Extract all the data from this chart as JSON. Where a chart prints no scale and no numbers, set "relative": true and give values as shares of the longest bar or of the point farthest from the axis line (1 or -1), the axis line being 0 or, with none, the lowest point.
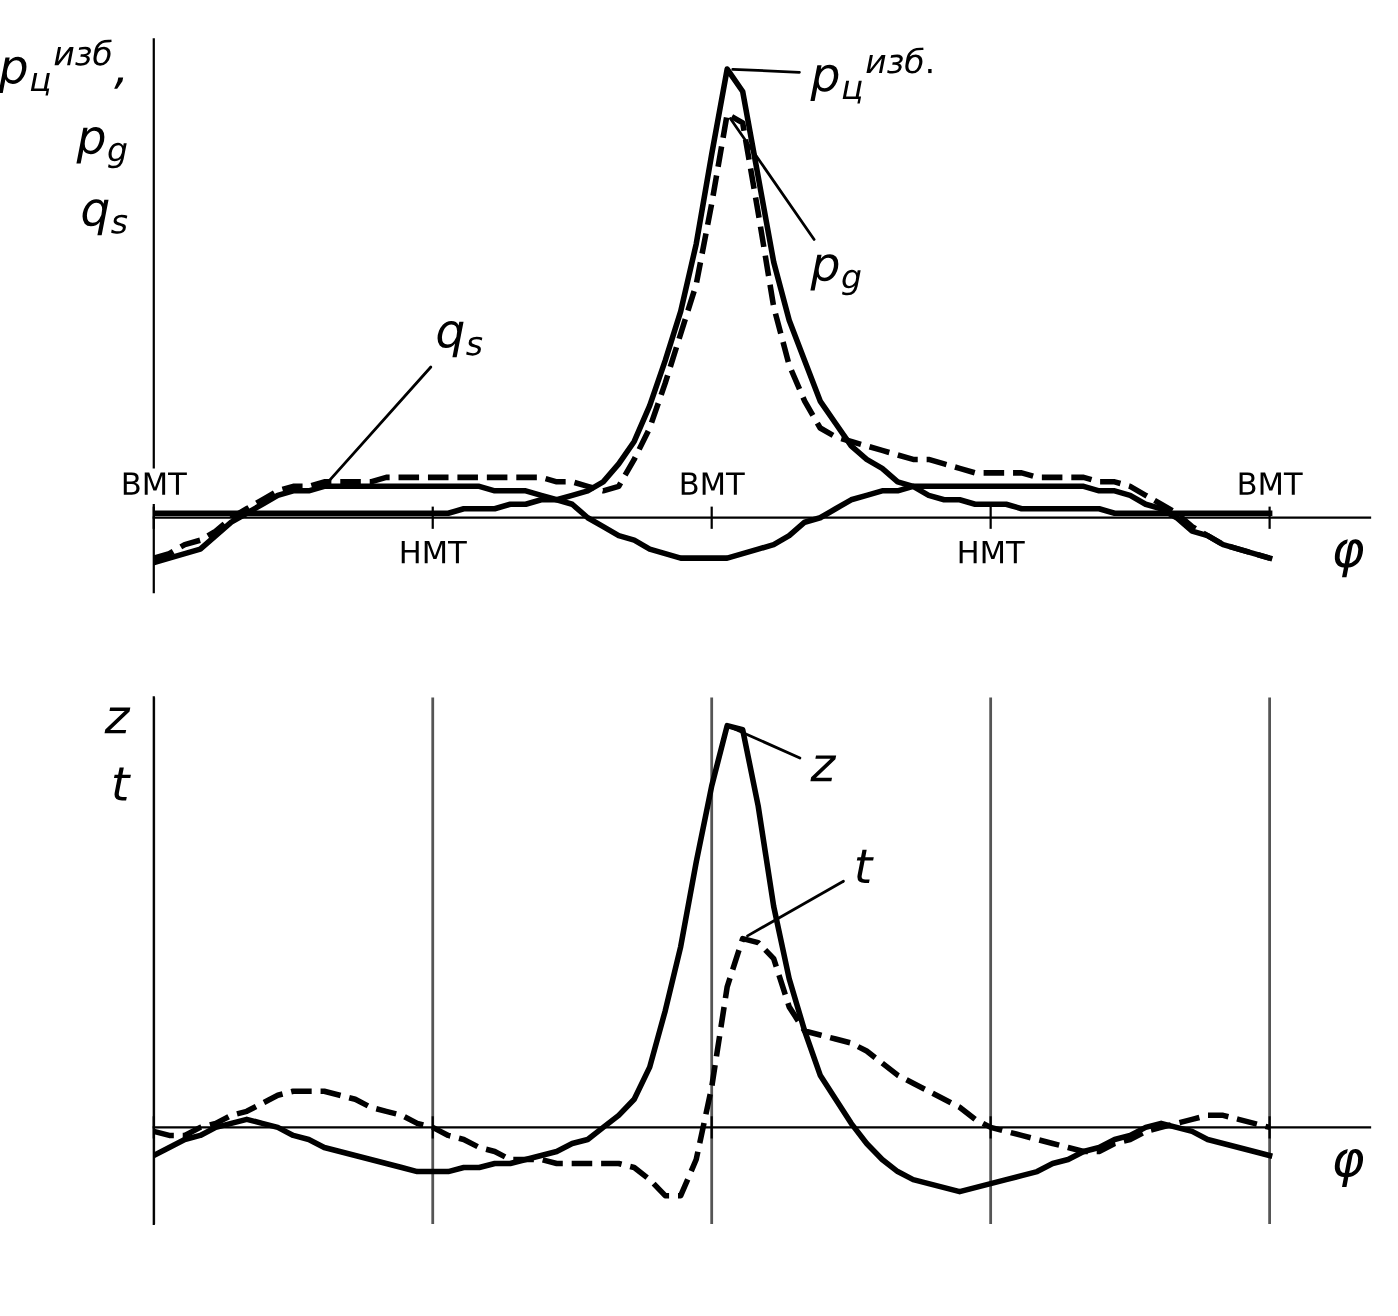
{
  "chart_data": [
    {
      "type": "line",
      "relative": true,
      "ylabel": "p$_{ц}$$^{изб}$,\np$_{g}$\nq$_{s}$",
      "xlabel": "φ",
      "tick_labels": "x",
      "categories": [
        "ВМТ",
        null,
        null,
        null,
        null,
        null,
        null,
        null,
        null,
        null,
        null,
        null,
        null,
        null,
        null,
        null,
        null,
        null,
        "НМТ",
        null,
        null,
        null,
        null,
        null,
        null,
        null,
        null,
        null,
        null,
        null,
        null,
        null,
        null,
        null,
        null,
        null,
        "ВМТ",
        null,
        null,
        null,
        null,
        null,
        null,
        null,
        null,
        null,
        null,
        null,
        null,
        null,
        null,
        null,
        null,
        null,
        "НМТ",
        null,
        null,
        null,
        null,
        null,
        null,
        null,
        null,
        null,
        null,
        null,
        null,
        null,
        null,
        null,
        null,
        null,
        "ВМТ"
      ],
      "series": [
        {
          "name": "p$_{ц}$$^{изб.}$",
          "color": "#000000",
          "line_style": "solid",
          "values": [
            0.01,
            0.01,
            0.01,
            0.01,
            0.01,
            0.01,
            0.01,
            0.01,
            0.01,
            0.01,
            0.01,
            0.01,
            0.01,
            0.01,
            0.01,
            0.01,
            0.01,
            0.01,
            0.01,
            0.01,
            0.02,
            0.02,
            0.02,
            0.03,
            0.03,
            0.04,
            0.04,
            0.05,
            0.06,
            0.08,
            0.12,
            0.17,
            0.25,
            0.35,
            0.46,
            0.61,
            0.81,
            1.0,
            0.95,
            0.76,
            0.57,
            0.44,
            0.35,
            0.26,
            0.21,
            0.16,
            0.13,
            0.11,
            0.08,
            0.07,
            0.05,
            0.04,
            0.04,
            0.03,
            0.03,
            0.03,
            0.02,
            0.02,
            0.02,
            0.02,
            0.02,
            0.02,
            0.01,
            0.01,
            0.01,
            0.01,
            0.01,
            0.01,
            0.01,
            0.01,
            0.01,
            0.01,
            0.01
          ]
        },
        {
          "name": "p$_{g}$",
          "color": "#000000",
          "line_style": "dashed",
          "values": [
            -0.09,
            -0.08,
            -0.06,
            -0.05,
            -0.03,
            0.0,
            0.02,
            0.04,
            0.06,
            0.07,
            0.07,
            0.08,
            0.08,
            0.08,
            0.08,
            0.09,
            0.09,
            0.09,
            0.09,
            0.09,
            0.09,
            0.09,
            0.09,
            0.09,
            0.09,
            0.09,
            0.08,
            0.08,
            0.07,
            0.06,
            0.07,
            0.13,
            0.2,
            0.3,
            0.41,
            0.52,
            0.7,
            0.9,
            0.88,
            0.68,
            0.47,
            0.34,
            0.26,
            0.2,
            0.18,
            0.17,
            0.16,
            0.15,
            0.14,
            0.13,
            0.13,
            0.12,
            0.11,
            0.1,
            0.1,
            0.1,
            0.1,
            0.09,
            0.09,
            0.09,
            0.09,
            0.08,
            0.08,
            0.07,
            0.05,
            0.03,
            0.01,
            -0.02,
            -0.04,
            -0.06,
            -0.07,
            -0.08,
            -0.09
          ]
        },
        {
          "name": "q$_{s}$",
          "color": "#000000",
          "line_style": "solid",
          "values": [
            -0.1,
            -0.09,
            -0.08,
            -0.07,
            -0.04,
            -0.01,
            0.01,
            0.03,
            0.05,
            0.06,
            0.06,
            0.07,
            0.07,
            0.07,
            0.07,
            0.07,
            0.07,
            0.07,
            0.07,
            0.07,
            0.07,
            0.07,
            0.06,
            0.06,
            0.06,
            0.05,
            0.04,
            0.03,
            0.0,
            -0.02,
            -0.04,
            -0.05,
            -0.07,
            -0.08,
            -0.09,
            -0.09,
            -0.09,
            -0.09,
            -0.08,
            -0.07,
            -0.06,
            -0.04,
            -0.01,
            0.0,
            0.02,
            0.04,
            0.05,
            0.06,
            0.06,
            0.07,
            0.07,
            0.07,
            0.07,
            0.07,
            0.07,
            0.07,
            0.07,
            0.07,
            0.07,
            0.07,
            0.07,
            0.06,
            0.06,
            0.05,
            0.03,
            0.02,
            0.0,
            -0.03,
            -0.04,
            -0.06,
            -0.07,
            -0.08,
            -0.09
          ]
        }
      ]
    },
    {
      "type": "line",
      "relative": true,
      "ylabel": "z\nt",
      "xlabel": "φ",
      "tick_labels": false,
      "grid": "x",
      "categories": [
        null,
        null,
        null,
        null,
        null,
        null,
        null,
        null,
        null,
        null,
        null,
        null,
        null,
        null,
        null,
        null,
        null,
        null,
        null,
        null,
        null,
        null,
        null,
        null,
        null,
        null,
        null,
        null,
        null,
        null,
        null,
        null,
        null,
        null,
        null,
        null,
        null,
        null,
        null,
        null,
        null,
        null,
        null,
        null,
        null,
        null,
        null,
        null,
        null,
        null,
        null,
        null,
        null,
        null,
        null,
        null,
        null,
        null,
        null,
        null,
        null,
        null,
        null,
        null,
        null,
        null,
        null,
        null,
        null,
        null,
        null,
        null,
        null
      ],
      "series": [
        {
          "name": "z",
          "color": "#000000",
          "line_style": "solid",
          "values": [
            -0.07,
            -0.05,
            -0.03,
            -0.02,
            0.0,
            0.01,
            0.02,
            0.01,
            0.0,
            -0.02,
            -0.03,
            -0.05,
            -0.06,
            -0.07,
            -0.08,
            -0.09,
            -0.1,
            -0.11,
            -0.11,
            -0.11,
            -0.1,
            -0.1,
            -0.09,
            -0.09,
            -0.08,
            -0.07,
            -0.06,
            -0.04,
            -0.03,
            0.0,
            0.03,
            0.07,
            0.15,
            0.29,
            0.45,
            0.66,
            0.85,
            1.0,
            0.99,
            0.8,
            0.55,
            0.37,
            0.24,
            0.13,
            0.07,
            0.01,
            -0.04,
            -0.08,
            -0.11,
            -0.13,
            -0.14,
            -0.15,
            -0.16,
            -0.15,
            -0.14,
            -0.13,
            -0.12,
            -0.11,
            -0.09,
            -0.08,
            -0.06,
            -0.05,
            -0.03,
            -0.02,
            0.0,
            0.01,
            0.0,
            -0.01,
            -0.03,
            -0.04,
            -0.05,
            -0.06,
            -0.07
          ]
        },
        {
          "name": "t",
          "color": "#000000",
          "line_style": "dashed",
          "values": [
            -0.01,
            -0.02,
            -0.02,
            0.0,
            0.01,
            0.03,
            0.04,
            0.06,
            0.08,
            0.09,
            0.09,
            0.09,
            0.08,
            0.07,
            0.05,
            0.04,
            0.03,
            0.01,
            0.0,
            -0.02,
            -0.03,
            -0.05,
            -0.06,
            -0.08,
            -0.08,
            -0.08,
            -0.09,
            -0.09,
            -0.09,
            -0.09,
            -0.09,
            -0.1,
            -0.13,
            -0.17,
            -0.17,
            -0.08,
            0.1,
            0.35,
            0.47,
            0.46,
            0.42,
            0.3,
            0.24,
            0.23,
            0.22,
            0.21,
            0.19,
            0.16,
            0.13,
            0.11,
            0.09,
            0.07,
            0.05,
            0.02,
            0.0,
            -0.01,
            -0.02,
            -0.03,
            -0.04,
            -0.05,
            -0.06,
            -0.06,
            -0.04,
            -0.03,
            -0.01,
            0.0,
            0.01,
            0.02,
            0.03,
            0.03,
            0.02,
            0.01,
            0.0
          ]
        }
      ]
    }
  ]
}
